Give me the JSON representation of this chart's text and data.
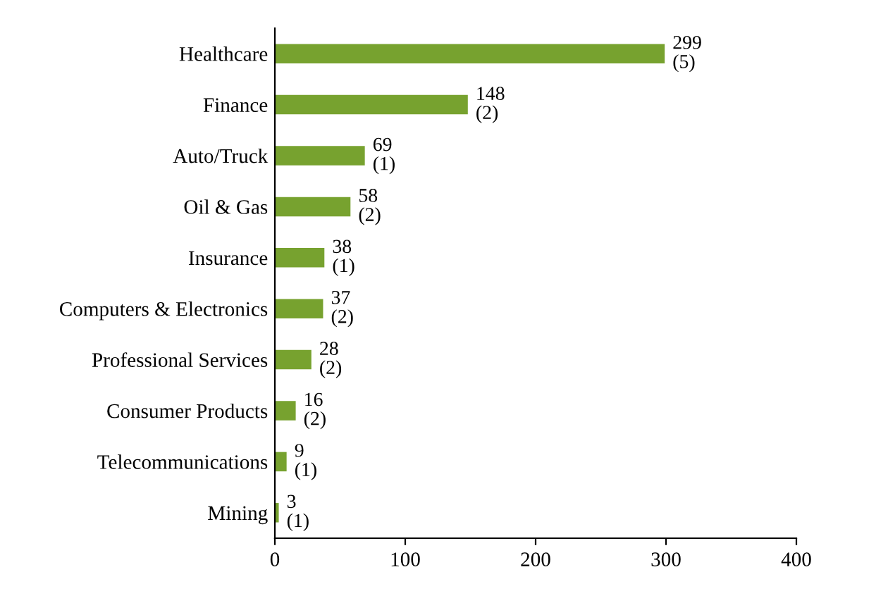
{
  "chart_data": {
    "type": "bar",
    "orientation": "horizontal",
    "categories": [
      "Healthcare",
      "Finance",
      "Auto/Truck",
      "Oil & Gas",
      "Insurance",
      "Computers & Electronics",
      "Professional Services",
      "Consumer Products",
      "Telecommunications",
      "Mining"
    ],
    "values": [
      299,
      148,
      69,
      58,
      38,
      37,
      28,
      16,
      9,
      3
    ],
    "value_labels": [
      "299\n(5)",
      "148\n(2)",
      "69\n(1)",
      "58\n(2)",
      "38\n(1)",
      "37\n(2)",
      "28\n(2)",
      "16\n(2)",
      "9\n(1)",
      "3\n(1)"
    ],
    "color": "#77a22f",
    "xlim": [
      0,
      400
    ],
    "xticks": [
      0,
      100,
      200,
      300,
      400
    ],
    "grid": false,
    "legend": false
  }
}
